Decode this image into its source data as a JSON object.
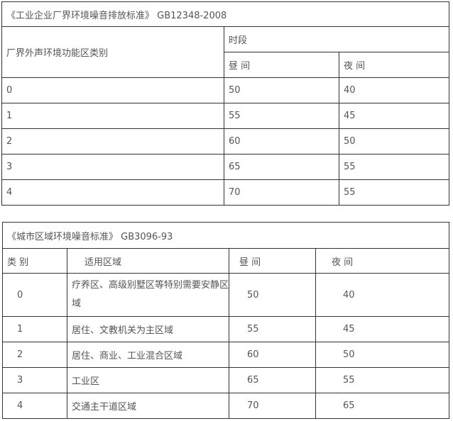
{
  "table1": {
    "title": "《工业企业厂界环境噪音排放标准》 GB12348-2008",
    "category_header": "厂界外声环境功能区类别",
    "period_header": "时段",
    "day_header": "昼 间",
    "night_header": "夜 间",
    "rows": [
      {
        "cat": "0",
        "day": "50",
        "night": "40"
      },
      {
        "cat": "1",
        "day": "55",
        "night": "45"
      },
      {
        "cat": "2",
        "day": "60",
        "night": "50"
      },
      {
        "cat": "3",
        "day": "65",
        "night": "55"
      },
      {
        "cat": "4",
        "day": "70",
        "night": "55"
      }
    ]
  },
  "table2": {
    "title": "《城市区域环境噪音标准》 GB3096-93",
    "headers": [
      "类 别",
      "适用区域",
      "昼 间",
      "夜 间"
    ],
    "rows": [
      {
        "cat": "0",
        "area": "疗养区、高级别墅区等特别需要安静区域",
        "day": "50",
        "night": "40"
      },
      {
        "cat": "1",
        "area": "居住、文教机关为主区域",
        "day": "55",
        "night": "45"
      },
      {
        "cat": "2",
        "area": "居住、商业、工业混合区域",
        "day": "60",
        "night": "50"
      },
      {
        "cat": "3",
        "area": "工业区",
        "day": "65",
        "night": "55"
      },
      {
        "cat": "4",
        "area": "交通主干道区域",
        "day": "70",
        "night": "65"
      }
    ]
  }
}
